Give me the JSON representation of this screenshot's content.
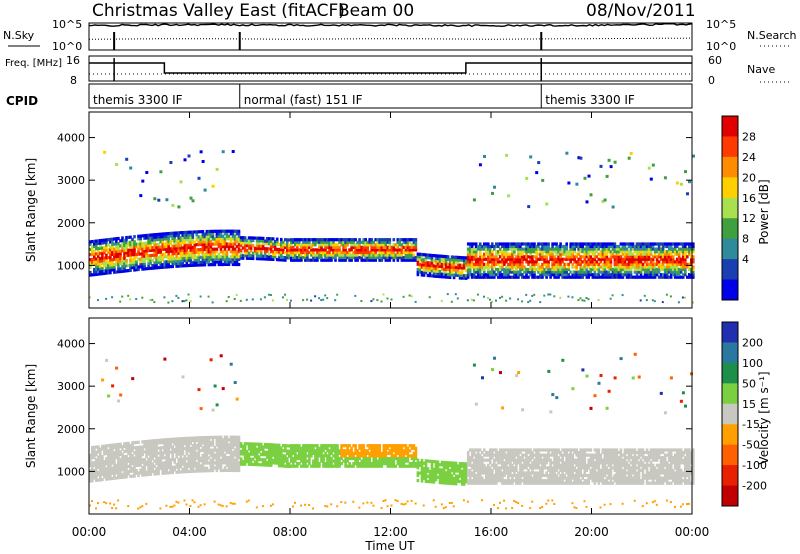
{
  "chart_data": [
    {
      "type": "line",
      "title": "Christmas Valley East (fitACF)",
      "beam": "Beam 00",
      "date": "08/Nov/2011",
      "panel": "noise",
      "left_label": "N.Sky",
      "right_label": "N.Search",
      "left_ticks": [
        "10^5",
        "10^0"
      ],
      "right_ticks": [
        "10^5",
        "10^0"
      ],
      "x": [
        "00:00",
        "04:00",
        "08:00",
        "12:00",
        "16:00",
        "20:00",
        "00:00"
      ],
      "series": [
        {
          "name": "N.Sky",
          "values": [
            4.5,
            4.7,
            4.6,
            4.6,
            4.5,
            4.6,
            4.8
          ]
        },
        {
          "name": "N.Search",
          "values": [
            2.0,
            2.1,
            2.0,
            2.1,
            2.0,
            2.1,
            2.2
          ]
        }
      ]
    },
    {
      "type": "line",
      "panel": "frequency",
      "left_label": "Freq. [MHz]",
      "left_ticks": [
        "16",
        "8"
      ],
      "right_label": "Nave",
      "right_ticks": [
        "60",
        "0"
      ],
      "steps": [
        {
          "start": "00:00",
          "end": "03:00",
          "freq_level": "high"
        },
        {
          "start": "03:00",
          "end": "15:00",
          "freq_level": "low"
        },
        {
          "start": "15:00",
          "end": "24:00",
          "freq_level": "high"
        }
      ]
    },
    {
      "type": "table",
      "panel": "cpid",
      "label": "CPID",
      "segments": [
        {
          "start_hour": 0,
          "text": "themis 3300 IF"
        },
        {
          "start_hour": 6,
          "text": "normal (fast) 151 IF"
        },
        {
          "start_hour": 18,
          "text": "themis 3300 IF"
        }
      ]
    },
    {
      "type": "heatmap",
      "panel": "power",
      "ylabel": "Slant Range [km]",
      "xlabel": "Time UT",
      "ylim": [
        0,
        4600
      ],
      "xlim": [
        0,
        24
      ],
      "y_ticks": [
        1000,
        2000,
        3000,
        4000
      ],
      "x_ticks": [
        "00:00",
        "04:00",
        "08:00",
        "12:00",
        "16:00",
        "20:00",
        "00:00"
      ],
      "colorbar_label": "Power [dB]",
      "colorbar_ticks": [
        "28",
        "24",
        "20",
        "16",
        "12",
        "8",
        "4"
      ],
      "colorbar_colors": [
        "#e00000",
        "#ff3a00",
        "#ff8c00",
        "#ffd000",
        "#a8e050",
        "#40a040",
        "#2f8a9a",
        "#1a3fb0",
        "#0000e8"
      ]
    },
    {
      "type": "heatmap",
      "panel": "velocity",
      "ylabel": "Slant Range [km]",
      "xlabel": "Time UT",
      "ylim": [
        0,
        4600
      ],
      "xlim": [
        0,
        24
      ],
      "y_ticks": [
        1000,
        2000,
        3000,
        4000
      ],
      "x_ticks": [
        "00:00",
        "04:00",
        "08:00",
        "12:00",
        "16:00",
        "20:00",
        "00:00"
      ],
      "colorbar_label": "Velocity [m s⁻¹]",
      "colorbar_ticks": [
        "200",
        "100",
        "50",
        "15",
        "-15",
        "-50",
        "-100",
        "-200"
      ],
      "colorbar_colors": [
        "#1f2fb0",
        "#2a78a0",
        "#1e8f4a",
        "#7ad040",
        "#c8c8c0",
        "#ffa000",
        "#ff6000",
        "#e82000",
        "#c00000"
      ]
    }
  ],
  "xlabel_bottom": "Time UT"
}
